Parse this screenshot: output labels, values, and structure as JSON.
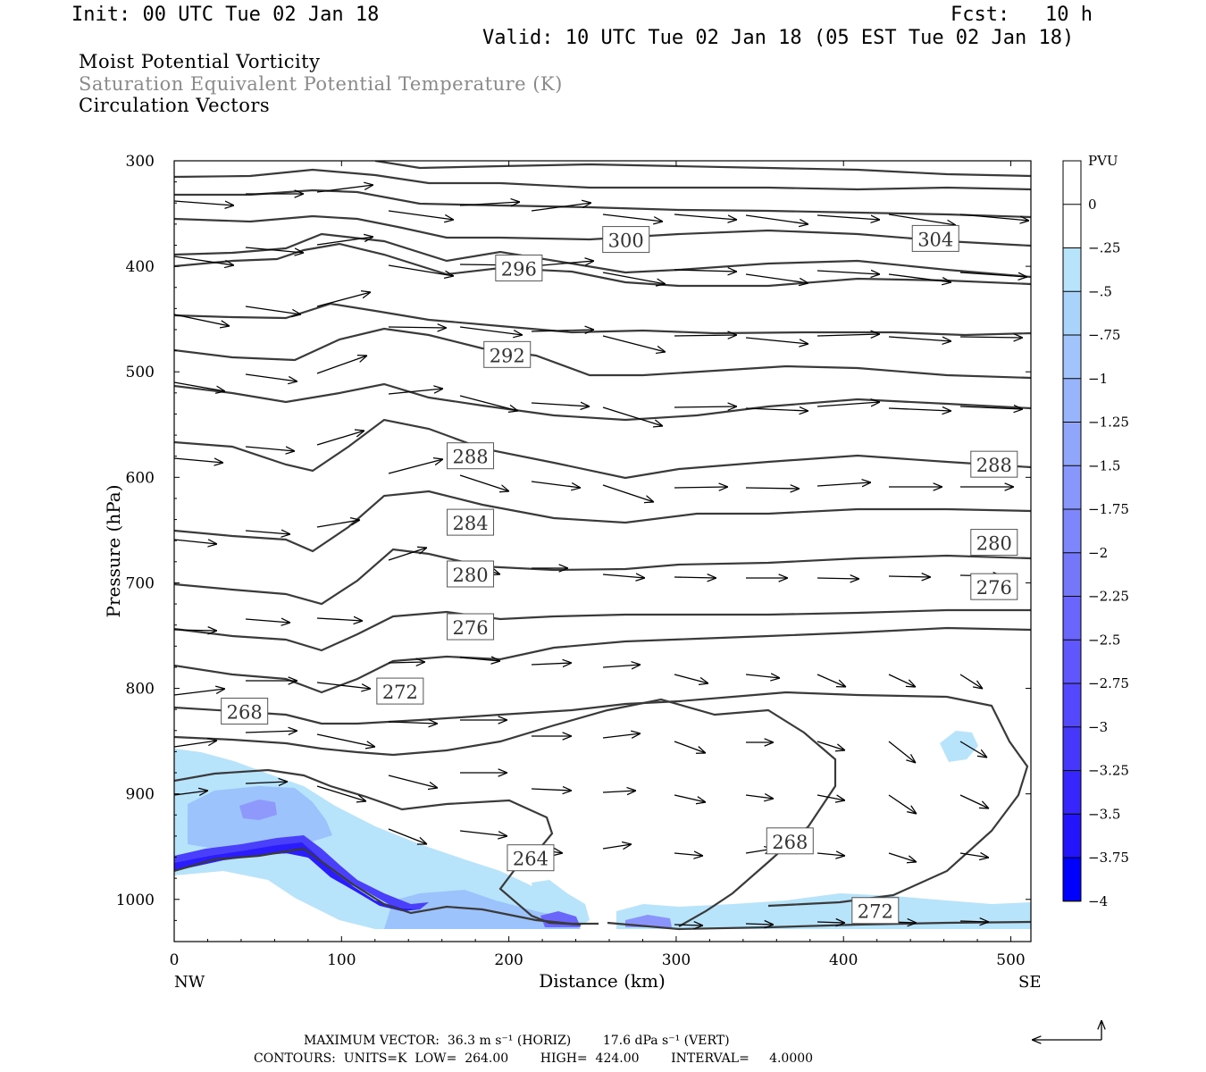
{
  "header": {
    "init": "Init: 00 UTC Tue 02 Jan 18",
    "fcst": "Fcst:   10 h",
    "valid": "Valid: 10 UTC Tue 02 Jan 18 (05 EST Tue 02 Jan 18)"
  },
  "fields": {
    "field1": "Moist Potential Vorticity",
    "field2": "Saturation Equivalent Potential Temperature (K)",
    "field3": "Circulation Vectors"
  },
  "footer": {
    "vector_line": "MAXIMUM VECTOR:  36.3 m s⁻¹ (HORIZ)        17.6 dPa s⁻¹ (VERT)",
    "contour_line": "CONTOURS:  UNITS=K  LOW=  264.00        HIGH=  424.00        INTERVAL=     4.0000"
  },
  "colors": {
    "contour": "#3a3a3a",
    "pv_light": "#b7e3fb",
    "pv_dark": "#0000ff"
  },
  "chart_data": {
    "type": "cross-section",
    "xlabel": "Distance (km)",
    "ylabel": "Pressure (hPa)",
    "x_endpoints": [
      "NW",
      "SE"
    ],
    "xlim": [
      0,
      512
    ],
    "ylim": [
      1040,
      300
    ],
    "x_ticks": [
      0,
      100,
      200,
      300,
      400,
      500
    ],
    "y_ticks": [
      300,
      400,
      500,
      600,
      700,
      800,
      900,
      1000
    ],
    "contour_labels": [
      {
        "text": "300",
        "x": 270,
        "p": 375
      },
      {
        "text": "304",
        "x": 455,
        "p": 374
      },
      {
        "text": "296",
        "x": 206,
        "p": 402
      },
      {
        "text": "292",
        "x": 199,
        "p": 484
      },
      {
        "text": "288",
        "x": 177,
        "p": 580
      },
      {
        "text": "288",
        "x": 490,
        "p": 588
      },
      {
        "text": "284",
        "x": 177,
        "p": 643
      },
      {
        "text": "280",
        "x": 177,
        "p": 692
      },
      {
        "text": "280",
        "x": 490,
        "p": 662
      },
      {
        "text": "276",
        "x": 177,
        "p": 742
      },
      {
        "text": "276",
        "x": 490,
        "p": 704
      },
      {
        "text": "272",
        "x": 135,
        "p": 803
      },
      {
        "text": "272",
        "x": 419,
        "p": 1011
      },
      {
        "text": "268",
        "x": 42,
        "p": 822
      },
      {
        "text": "268",
        "x": 368,
        "p": 945
      },
      {
        "text": "264",
        "x": 213,
        "p": 961
      }
    ],
    "pv_scale": {
      "unit": "PVU",
      "labels": [
        "0",
        "-.25",
        "-.5",
        "-.75",
        "-1",
        "-1.25",
        "-1.5",
        "-1.75",
        "-2",
        "-2.25",
        "-2.5",
        "-2.75",
        "-3",
        "-3.25",
        "-3.5",
        "-3.75",
        "-4"
      ],
      "colors": [
        "#ffffff",
        "#ffffff",
        "#b7e3fb",
        "#a9d3fb",
        "#a0c4fb",
        "#98b5fb",
        "#90a6fb",
        "#8897fb",
        "#7e86fb",
        "#7577fb",
        "#6a66fb",
        "#5f57fb",
        "#5348fb",
        "#4538fb",
        "#3626fb",
        "#2414fb",
        "#0000ff"
      ]
    }
  }
}
